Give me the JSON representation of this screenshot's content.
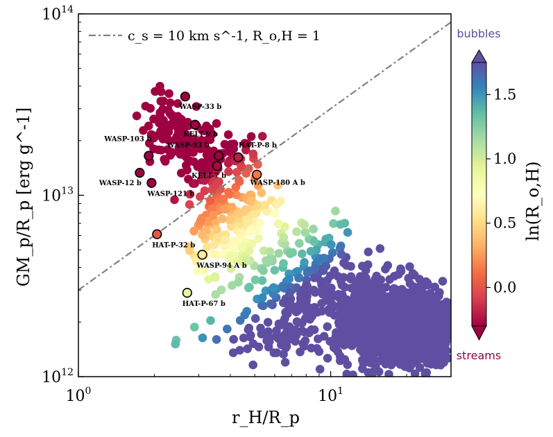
{
  "chart_data": {
    "type": "scatter",
    "xlabel": "r_H/R_p",
    "ylabel": "GM_p/R_p [erg g^-1]",
    "x_scale": "log",
    "y_scale": "log",
    "xlim": [
      1,
      30
    ],
    "ylim": [
      1000000000000.0,
      100000000000000.0
    ],
    "x_ticks": [
      {
        "value": 1,
        "base": "10",
        "exp": "0"
      },
      {
        "value": 10,
        "base": "10",
        "exp": "1"
      }
    ],
    "y_ticks": [
      {
        "value": 1000000000000.0,
        "base": "10",
        "exp": "12"
      },
      {
        "value": 10000000000000.0,
        "base": "10",
        "exp": "13"
      },
      {
        "value": 100000000000000.0,
        "base": "10",
        "exp": "14"
      }
    ],
    "legend": {
      "label": "c_s = 10 km s^-1, R_o,H = 1",
      "placement": "top-left"
    },
    "reference_line": {
      "x": [
        1,
        30
      ],
      "y": [
        3000000000000.0,
        90000000000000.0
      ]
    },
    "colorbar": {
      "label": "ln(R_o,H)",
      "range": [
        -0.3,
        1.75
      ],
      "ticks": [
        "0.0",
        "0.5",
        "1.0",
        "1.5"
      ],
      "tick_values": [
        0.0,
        0.5,
        1.0,
        1.5
      ],
      "top_annotation": "bubbles",
      "bottom_annotation": "streams",
      "top_annotation_color": "#5d4e9f",
      "bottom_annotation_color": "#8d0740",
      "colormap": "Spectral"
    },
    "highlighted_planets": [
      {
        "name": "WASP-33 b",
        "x": 2.65,
        "y": 35000000000000.0
      },
      {
        "name": "KELT-9 b",
        "x": 2.9,
        "y": 24500000000000.0
      },
      {
        "name": "WASP-103 b",
        "x": 1.9,
        "y": 16500000000000.0
      },
      {
        "name": "WASP-93 b",
        "x": 3.6,
        "y": 16500000000000.0
      },
      {
        "name": "HAT-P-8 b",
        "x": 4.3,
        "y": 16200000000000.0
      },
      {
        "name": "KELT-7 b",
        "x": 3.55,
        "y": 14500000000000.0
      },
      {
        "name": "WASP-12 b",
        "x": 1.75,
        "y": 13300000000000.0
      },
      {
        "name": "WASP-121 b",
        "x": 1.95,
        "y": 11700000000000.0
      },
      {
        "name": "WASP-180 A b",
        "x": 5.1,
        "y": 13000000000000.0
      },
      {
        "name": "HAT-P-32 b",
        "x": 2.05,
        "y": 6100000000000.0
      },
      {
        "name": "WASP-94 A b",
        "x": 3.1,
        "y": 4700000000000.0
      },
      {
        "name": "HAT-P-67 b",
        "x": 2.7,
        "y": 2900000000000.0
      }
    ],
    "grid": false
  }
}
